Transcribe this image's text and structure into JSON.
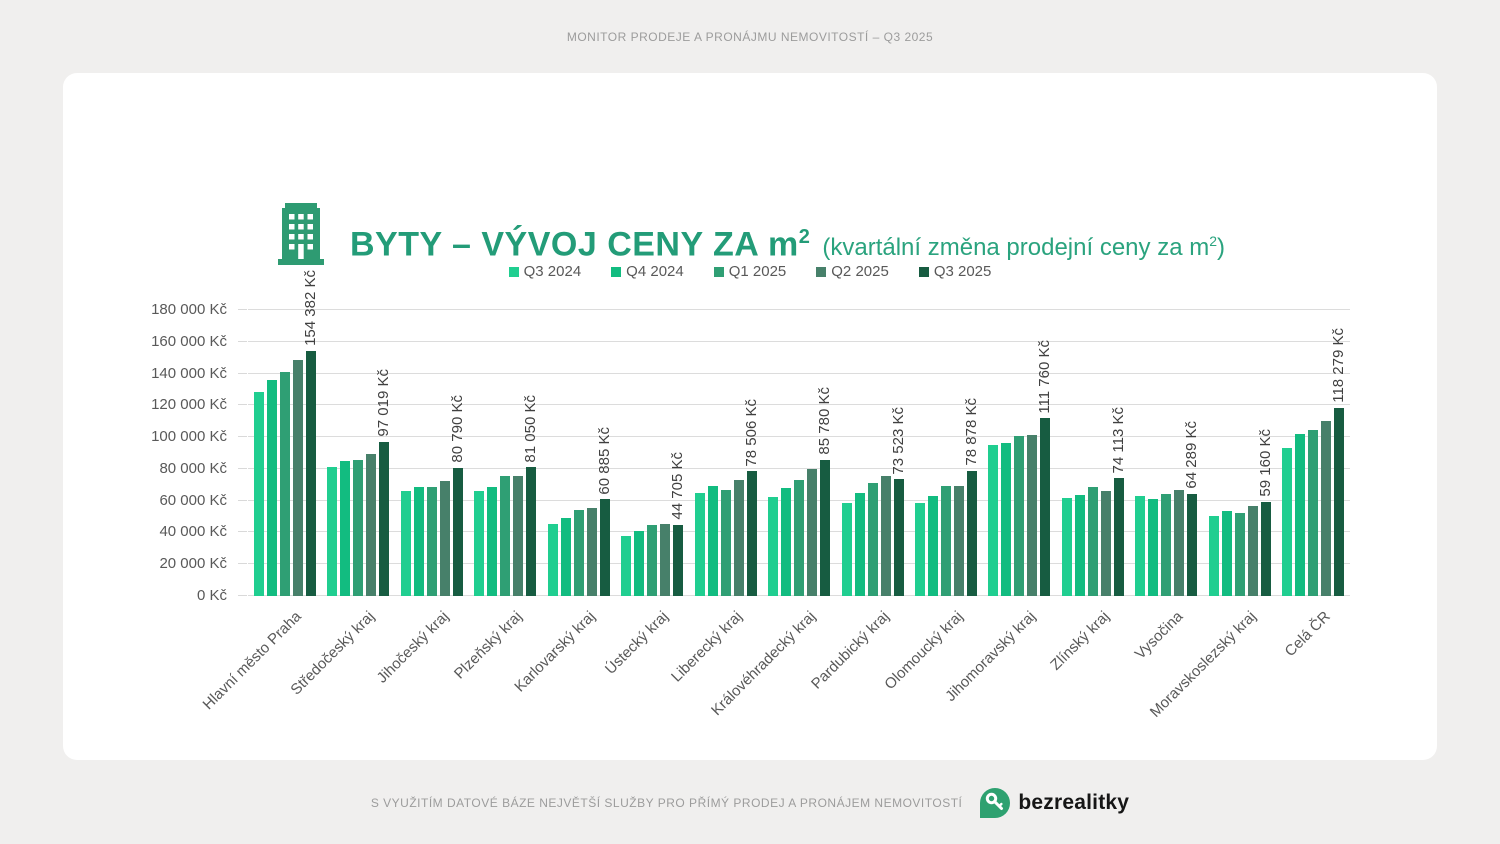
{
  "page_header": {
    "text": "MONITOR PRODEJE A PRONÁJMU NEMOVITOSTÍ – Q3 2025"
  },
  "title": {
    "main": "BYTY – VÝVOJ CENY ZA m",
    "main_sup": "2",
    "sub_pre": "(kvartální změna prodejní ceny za m",
    "sub_sup": "2",
    "sub_close": ")"
  },
  "icons": {
    "building_icon": "building-icon",
    "brand_pin_icon": "key-pin-icon"
  },
  "accent_colors": {
    "title_green": "#239c78",
    "brand_green": "#2ea170",
    "axis_text": "#595959",
    "gridline": "#dcdcdc"
  },
  "chart_data": {
    "type": "bar",
    "title": "BYTY – VÝVOJ CENY ZA m² (kvartální změna prodejní ceny za m²)",
    "xlabel": "",
    "ylabel": "",
    "ylim": [
      0,
      180000
    ],
    "ytick_step": 20000,
    "grid": true,
    "legend_position": "top-center",
    "ytick_labels": [
      "0 Kč",
      "20 000 Kč",
      "40 000 Kč",
      "60 000 Kč",
      "80 000 Kč",
      "100 000 Kč",
      "120 000 Kč",
      "140 000 Kč",
      "160 000 Kč",
      "180 000 Kč"
    ],
    "categories": [
      "Hlavní město Praha",
      "Středočeský kraj",
      "Jihočeský kraj",
      "Plzeňský kraj",
      "Karlovarský kraj",
      "Ústecký kraj",
      "Liberecký kraj",
      "Královéhradecký kraj",
      "Pardubický kraj",
      "Olomoucký kraj",
      "Jihomoravský kraj",
      "Zlínský kraj",
      "Vysočina",
      "Moravskoslezský kraj",
      "Celá ČR"
    ],
    "series_colors": [
      "#20ce90",
      "#12bc80",
      "#2f9f74",
      "#47806a",
      "#175c41"
    ],
    "series": [
      {
        "name": "Q3 2024",
        "values": [
          128500,
          81400,
          66000,
          66200,
          45500,
          37800,
          64700,
          62600,
          58300,
          58800,
          95100,
          61800,
          62800,
          50200,
          93400
        ]
      },
      {
        "name": "Q4 2024",
        "values": [
          136000,
          85300,
          68800,
          68400,
          49200,
          41200,
          69000,
          67800,
          64700,
          63000,
          96200,
          63700,
          61300,
          53400,
          101900
        ]
      },
      {
        "name": "Q1 2025",
        "values": [
          141000,
          85500,
          68600,
          75800,
          54000,
          44900,
          66900,
          73100,
          71200,
          69400,
          100800,
          68600,
          64300,
          52400,
          104300
        ]
      },
      {
        "name": "Q2 2025",
        "values": [
          148500,
          89700,
          72700,
          75600,
          55600,
          45500,
          73100,
          79700,
          75800,
          69100,
          101300,
          66200,
          66900,
          56600,
          110100
        ]
      },
      {
        "name": "Q3 2025",
        "values": [
          154382,
          97019,
          80790,
          81050,
          60885,
          44705,
          78506,
          85780,
          73523,
          78878,
          111760,
          74113,
          64289,
          59160,
          118279
        ]
      }
    ],
    "value_labels": [
      "154 382 Kč",
      "97 019 Kč",
      "80 790 Kč",
      "81 050 Kč",
      "60 885 Kč",
      "44 705 Kč",
      "78 506 Kč",
      "85 780 Kč",
      "73 523 Kč",
      "78 878 Kč",
      "111 760 Kč",
      "74 113 Kč",
      "64 289 Kč",
      "59 160 Kč",
      "118 279 Kč"
    ],
    "value_labels_series": "Q3 2025"
  },
  "footer": {
    "text": "S VYUŽITÍM DATOVÉ BÁZE NEJVĚTŠÍ SLUŽBY PRO PŘÍMÝ PRODEJ A PRONÁJEM NEMOVITOSTÍ",
    "brand": "bezrealitky"
  }
}
